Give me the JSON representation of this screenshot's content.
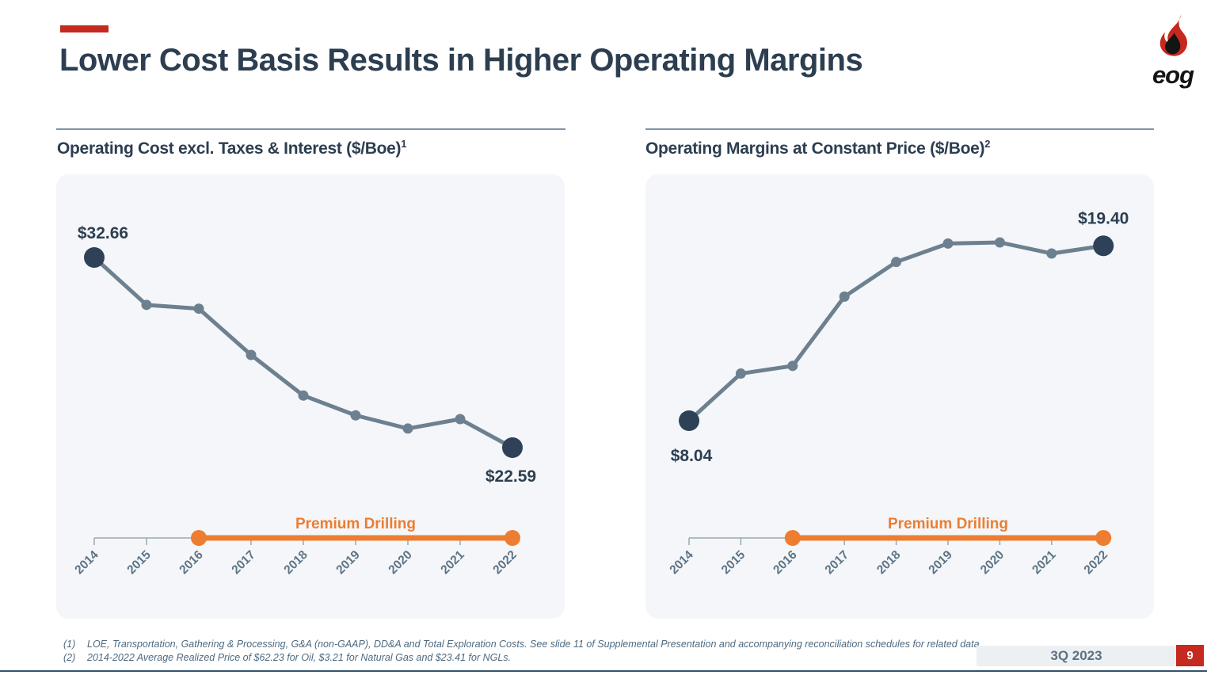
{
  "slide": {
    "title": "Lower Cost Basis Results in Higher Operating Margins",
    "period": "3Q 2023",
    "page_number": "9"
  },
  "logo": {
    "text": "eog"
  },
  "chart_data": [
    {
      "type": "line",
      "title": "Operating Cost excl. Taxes & Interest ($/Boe)",
      "title_footnote_ref": "1",
      "categories": [
        "2014",
        "2015",
        "2016",
        "2017",
        "2018",
        "2019",
        "2020",
        "2021",
        "2022"
      ],
      "values": [
        32.66,
        30.15,
        29.95,
        27.5,
        25.35,
        24.3,
        23.6,
        24.1,
        22.59
      ],
      "labeled_points": [
        {
          "category": "2014",
          "label": "$32.66"
        },
        {
          "category": "2022",
          "label": "$22.59"
        }
      ],
      "ylim": [
        22,
        33
      ],
      "grid": false,
      "annotations": [
        {
          "text": "Premium Drilling",
          "span": [
            "2016",
            "2022"
          ]
        }
      ]
    },
    {
      "type": "line",
      "title": "Operating Margins at Constant Price ($/Boe)",
      "title_footnote_ref": "2",
      "categories": [
        "2014",
        "2015",
        "2016",
        "2017",
        "2018",
        "2019",
        "2020",
        "2021",
        "2022"
      ],
      "values": [
        8.04,
        11.1,
        11.6,
        16.1,
        18.35,
        19.55,
        19.62,
        18.9,
        19.4
      ],
      "labeled_points": [
        {
          "category": "2014",
          "label": "$8.04"
        },
        {
          "category": "2022",
          "label": "$19.40"
        }
      ],
      "ylim": [
        7,
        21
      ],
      "grid": false,
      "annotations": [
        {
          "text": "Premium Drilling",
          "span": [
            "2016",
            "2022"
          ]
        }
      ]
    }
  ],
  "footnotes": [
    {
      "ref": "(1)",
      "text": "LOE, Transportation, Gathering & Processing, G&A (non-GAAP), DD&A and Total Exploration Costs.  See slide 11 of Supplemental Presentation and accompanying  reconciliation schedules for related data."
    },
    {
      "ref": "(2)",
      "text": "2014-2022 Average Realized Price of $62.23 for Oil, $3.21 for Natural Gas and $23.41 for NGLs."
    }
  ],
  "colors": {
    "accent_red": "#c5291f",
    "navy": "#2c3e50",
    "line_slate": "#6d8090",
    "dot_navy": "#2e4156",
    "orange": "#ed7d31",
    "panel_bg": "#f4f6f9",
    "tick_gray": "#9aa8b2",
    "year_label": "#5d7486",
    "footnote_text": "#4e6a80",
    "footer_bar_bg": "#edf0f3",
    "footer_bar_text": "#5a7285"
  }
}
